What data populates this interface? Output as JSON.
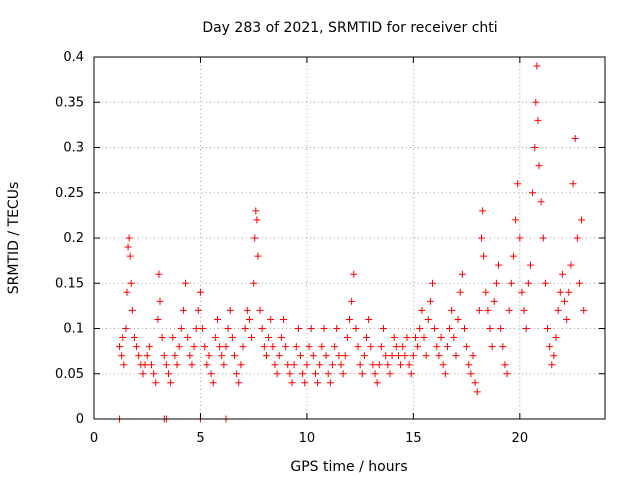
{
  "chart_data": {
    "type": "scatter",
    "title": "Day 283 of 2021, SRMTID for receiver chti",
    "xlabel": "GPS time / hours",
    "ylabel": "SRMTID / TECUs",
    "xlim": [
      0,
      24
    ],
    "ylim": [
      0,
      0.4
    ],
    "xticks": [
      0,
      5,
      10,
      15,
      20
    ],
    "xtick_labels": [
      "0",
      "5",
      "10",
      "15",
      "20"
    ],
    "yticks": [
      0,
      0.05,
      0.1,
      0.15,
      0.2,
      0.25,
      0.3,
      0.35,
      0.4
    ],
    "ytick_labels": [
      "0",
      "0.05",
      "0.1",
      "0.15",
      "0.2",
      "0.25",
      "0.3",
      "0.35",
      "0.4"
    ],
    "grid": true,
    "marker": "plus",
    "color": "#ff0000",
    "series": [
      {
        "points": [
          [
            1.2,
            0.08
          ],
          [
            1.3,
            0.07
          ],
          [
            1.35,
            0.09
          ],
          [
            1.4,
            0.06
          ],
          [
            1.5,
            0.1
          ],
          [
            1.55,
            0.14
          ],
          [
            1.6,
            0.19
          ],
          [
            1.65,
            0.2
          ],
          [
            1.7,
            0.18
          ],
          [
            1.75,
            0.15
          ],
          [
            1.8,
            0.12
          ],
          [
            1.9,
            0.09
          ],
          [
            2.0,
            0.08
          ],
          [
            2.1,
            0.07
          ],
          [
            2.2,
            0.06
          ],
          [
            2.3,
            0.05
          ],
          [
            2.4,
            0.06
          ],
          [
            2.5,
            0.07
          ],
          [
            2.6,
            0.08
          ],
          [
            2.7,
            0.06
          ],
          [
            2.8,
            0.05
          ],
          [
            2.9,
            0.04
          ],
          [
            3.0,
            0.11
          ],
          [
            3.05,
            0.16
          ],
          [
            3.1,
            0.13
          ],
          [
            3.2,
            0.09
          ],
          [
            3.3,
            0.07
          ],
          [
            3.4,
            0.06
          ],
          [
            3.5,
            0.05
          ],
          [
            3.6,
            0.04
          ],
          [
            3.7,
            0.09
          ],
          [
            3.8,
            0.07
          ],
          [
            3.9,
            0.06
          ],
          [
            4.0,
            0.08
          ],
          [
            4.1,
            0.1
          ],
          [
            4.2,
            0.12
          ],
          [
            4.3,
            0.15
          ],
          [
            4.4,
            0.09
          ],
          [
            4.5,
            0.07
          ],
          [
            4.6,
            0.06
          ],
          [
            4.7,
            0.08
          ],
          [
            4.8,
            0.1
          ],
          [
            4.9,
            0.12
          ],
          [
            5.0,
            0.14
          ],
          [
            5.1,
            0.1
          ],
          [
            5.2,
            0.08
          ],
          [
            5.3,
            0.06
          ],
          [
            5.4,
            0.07
          ],
          [
            5.5,
            0.05
          ],
          [
            5.6,
            0.04
          ],
          [
            5.7,
            0.09
          ],
          [
            5.8,
            0.11
          ],
          [
            5.9,
            0.08
          ],
          [
            6.0,
            0.07
          ],
          [
            6.1,
            0.06
          ],
          [
            6.2,
            0.08
          ],
          [
            6.3,
            0.1
          ],
          [
            6.4,
            0.12
          ],
          [
            6.5,
            0.09
          ],
          [
            6.6,
            0.07
          ],
          [
            6.7,
            0.05
          ],
          [
            6.8,
            0.04
          ],
          [
            6.9,
            0.06
          ],
          [
            7.0,
            0.08
          ],
          [
            7.1,
            0.1
          ],
          [
            7.2,
            0.12
          ],
          [
            7.3,
            0.11
          ],
          [
            7.4,
            0.09
          ],
          [
            7.5,
            0.15
          ],
          [
            7.55,
            0.2
          ],
          [
            7.6,
            0.23
          ],
          [
            7.65,
            0.22
          ],
          [
            7.7,
            0.18
          ],
          [
            7.8,
            0.12
          ],
          [
            7.9,
            0.1
          ],
          [
            8.0,
            0.08
          ],
          [
            8.1,
            0.07
          ],
          [
            8.2,
            0.09
          ],
          [
            8.3,
            0.11
          ],
          [
            8.4,
            0.08
          ],
          [
            8.5,
            0.06
          ],
          [
            8.6,
            0.05
          ],
          [
            8.7,
            0.07
          ],
          [
            8.8,
            0.09
          ],
          [
            8.9,
            0.11
          ],
          [
            9.0,
            0.08
          ],
          [
            9.1,
            0.06
          ],
          [
            9.2,
            0.05
          ],
          [
            9.3,
            0.04
          ],
          [
            9.4,
            0.06
          ],
          [
            9.5,
            0.08
          ],
          [
            9.6,
            0.1
          ],
          [
            9.7,
            0.07
          ],
          [
            9.8,
            0.05
          ],
          [
            9.9,
            0.04
          ],
          [
            10.0,
            0.06
          ],
          [
            10.1,
            0.08
          ],
          [
            10.2,
            0.1
          ],
          [
            10.3,
            0.07
          ],
          [
            10.4,
            0.05
          ],
          [
            10.5,
            0.04
          ],
          [
            10.6,
            0.06
          ],
          [
            10.7,
            0.08
          ],
          [
            10.8,
            0.1
          ],
          [
            10.9,
            0.07
          ],
          [
            11.0,
            0.05
          ],
          [
            11.1,
            0.04
          ],
          [
            11.2,
            0.06
          ],
          [
            11.3,
            0.08
          ],
          [
            11.4,
            0.1
          ],
          [
            11.5,
            0.07
          ],
          [
            11.6,
            0.06
          ],
          [
            11.7,
            0.05
          ],
          [
            11.8,
            0.07
          ],
          [
            11.9,
            0.09
          ],
          [
            12.0,
            0.11
          ],
          [
            12.1,
            0.13
          ],
          [
            12.2,
            0.16
          ],
          [
            12.3,
            0.1
          ],
          [
            12.4,
            0.08
          ],
          [
            12.5,
            0.06
          ],
          [
            12.6,
            0.05
          ],
          [
            12.7,
            0.07
          ],
          [
            12.8,
            0.09
          ],
          [
            12.9,
            0.11
          ],
          [
            13.0,
            0.08
          ],
          [
            13.1,
            0.06
          ],
          [
            13.2,
            0.05
          ],
          [
            13.3,
            0.04
          ],
          [
            13.4,
            0.06
          ],
          [
            13.5,
            0.08
          ],
          [
            13.6,
            0.1
          ],
          [
            13.7,
            0.07
          ],
          [
            13.8,
            0.06
          ],
          [
            13.9,
            0.05
          ],
          [
            14.0,
            0.07
          ],
          [
            14.1,
            0.09
          ],
          [
            14.2,
            0.08
          ],
          [
            14.3,
            0.07
          ],
          [
            14.4,
            0.06
          ],
          [
            14.5,
            0.08
          ],
          [
            14.6,
            0.07
          ],
          [
            14.7,
            0.09
          ],
          [
            14.8,
            0.06
          ],
          [
            14.9,
            0.05
          ],
          [
            15.0,
            0.07
          ],
          [
            15.1,
            0.09
          ],
          [
            15.2,
            0.08
          ],
          [
            15.3,
            0.1
          ],
          [
            15.4,
            0.12
          ],
          [
            15.5,
            0.09
          ],
          [
            15.6,
            0.07
          ],
          [
            15.7,
            0.11
          ],
          [
            15.8,
            0.13
          ],
          [
            15.9,
            0.15
          ],
          [
            16.0,
            0.1
          ],
          [
            16.1,
            0.08
          ],
          [
            16.2,
            0.07
          ],
          [
            16.3,
            0.09
          ],
          [
            16.4,
            0.06
          ],
          [
            16.5,
            0.05
          ],
          [
            16.6,
            0.08
          ],
          [
            16.7,
            0.1
          ],
          [
            16.8,
            0.12
          ],
          [
            16.9,
            0.09
          ],
          [
            17.0,
            0.07
          ],
          [
            17.1,
            0.11
          ],
          [
            17.2,
            0.14
          ],
          [
            17.3,
            0.16
          ],
          [
            17.4,
            0.1
          ],
          [
            17.5,
            0.08
          ],
          [
            17.6,
            0.06
          ],
          [
            17.7,
            0.05
          ],
          [
            17.8,
            0.07
          ],
          [
            17.9,
            0.04
          ],
          [
            18.0,
            0.03
          ],
          [
            18.1,
            0.12
          ],
          [
            18.2,
            0.2
          ],
          [
            18.25,
            0.23
          ],
          [
            18.3,
            0.18
          ],
          [
            18.4,
            0.14
          ],
          [
            18.5,
            0.12
          ],
          [
            18.6,
            0.1
          ],
          [
            18.7,
            0.08
          ],
          [
            18.8,
            0.13
          ],
          [
            18.9,
            0.15
          ],
          [
            19.0,
            0.17
          ],
          [
            19.1,
            0.1
          ],
          [
            19.2,
            0.08
          ],
          [
            19.3,
            0.06
          ],
          [
            19.4,
            0.05
          ],
          [
            19.5,
            0.12
          ],
          [
            19.6,
            0.15
          ],
          [
            19.7,
            0.18
          ],
          [
            19.8,
            0.22
          ],
          [
            19.9,
            0.26
          ],
          [
            20.0,
            0.2
          ],
          [
            20.1,
            0.14
          ],
          [
            20.2,
            0.12
          ],
          [
            20.3,
            0.1
          ],
          [
            20.4,
            0.15
          ],
          [
            20.5,
            0.17
          ],
          [
            20.6,
            0.25
          ],
          [
            20.7,
            0.3
          ],
          [
            20.75,
            0.35
          ],
          [
            20.8,
            0.39
          ],
          [
            20.85,
            0.33
          ],
          [
            20.9,
            0.28
          ],
          [
            21.0,
            0.24
          ],
          [
            21.1,
            0.2
          ],
          [
            21.2,
            0.15
          ],
          [
            21.3,
            0.1
          ],
          [
            21.4,
            0.08
          ],
          [
            21.5,
            0.06
          ],
          [
            21.6,
            0.07
          ],
          [
            21.7,
            0.09
          ],
          [
            21.8,
            0.12
          ],
          [
            21.9,
            0.14
          ],
          [
            22.0,
            0.16
          ],
          [
            22.1,
            0.13
          ],
          [
            22.2,
            0.11
          ],
          [
            22.3,
            0.14
          ],
          [
            22.4,
            0.17
          ],
          [
            22.5,
            0.26
          ],
          [
            22.6,
            0.31
          ],
          [
            22.7,
            0.2
          ],
          [
            22.8,
            0.15
          ],
          [
            22.9,
            0.22
          ],
          [
            23.0,
            0.12
          ]
        ]
      },
      {
        "points": [
          [
            1.2,
            0.0
          ],
          [
            3.3,
            0.0
          ],
          [
            3.4,
            0.0
          ],
          [
            5.0,
            0.0
          ],
          [
            6.2,
            0.0
          ]
        ]
      }
    ]
  }
}
